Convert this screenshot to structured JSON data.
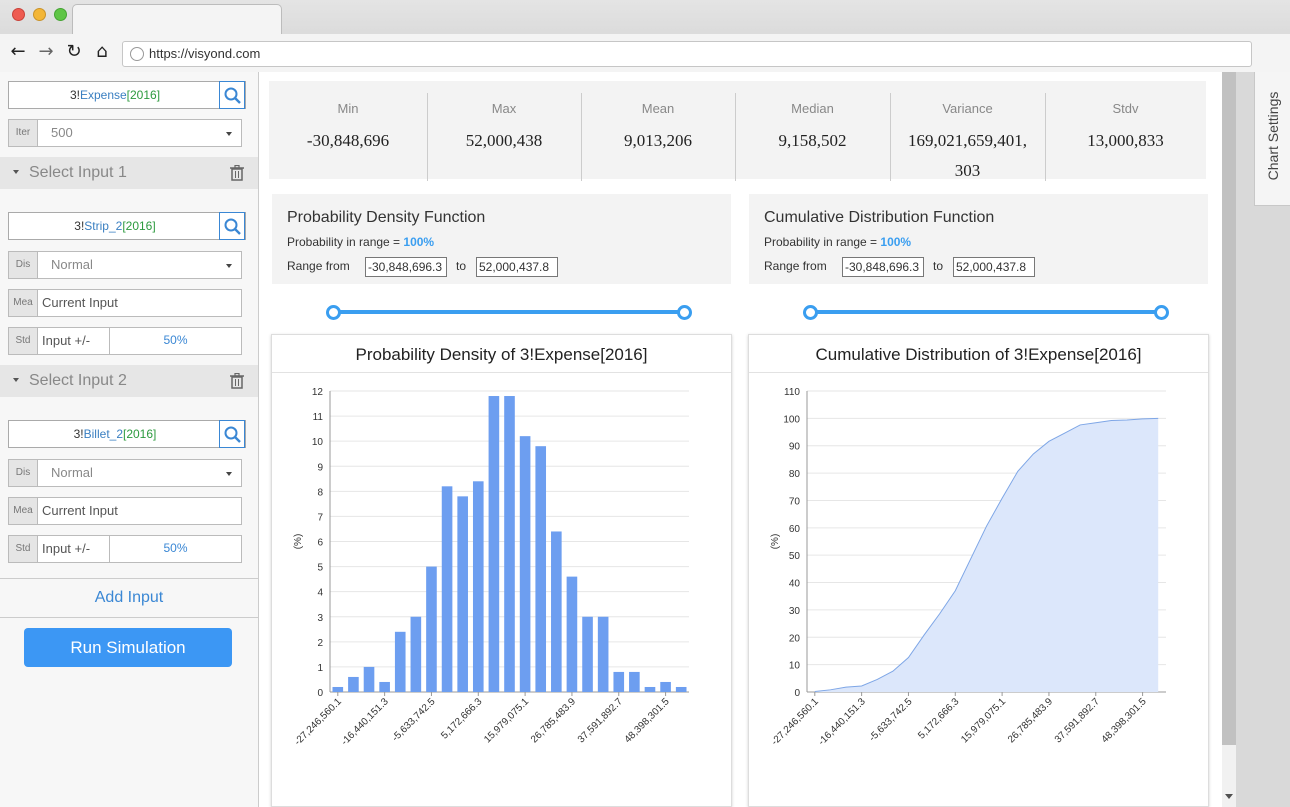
{
  "browser": {
    "url": "https://visyond.com"
  },
  "sidebar": {
    "output": {
      "prefix": "3!",
      "ref": "Expense",
      "year": "[2016]"
    },
    "iter": {
      "tag": "Iter",
      "value": "500"
    },
    "inputs": [
      {
        "header": "Select Input 1",
        "cell": {
          "prefix": "3!",
          "ref": "Strip_2",
          "year": "[2016]"
        },
        "dist": {
          "tag": "Dis",
          "value": "Normal"
        },
        "mean": {
          "tag": "Mea",
          "value": "Current Input"
        },
        "std": {
          "tag": "Std",
          "label": "Input +/-",
          "value": "50%"
        }
      },
      {
        "header": "Select Input 2",
        "cell": {
          "prefix": "3!",
          "ref": "Billet_2",
          "year": "[2016]"
        },
        "dist": {
          "tag": "Dis",
          "value": "Normal"
        },
        "mean": {
          "tag": "Mea",
          "value": "Current Input"
        },
        "std": {
          "tag": "Std",
          "label": "Input +/-",
          "value": "50%"
        }
      }
    ],
    "add_input": "Add Input",
    "run": "Run Simulation"
  },
  "stats": [
    {
      "label": "Min",
      "value": "-30,848,696"
    },
    {
      "label": "Max",
      "value": "52,000,438"
    },
    {
      "label": "Mean",
      "value": "9,013,206"
    },
    {
      "label": "Median",
      "value": "9,158,502"
    },
    {
      "label": "Variance",
      "value": "169,021,659,401,",
      "value2": "303"
    },
    {
      "label": "Stdv",
      "value": "13,000,833"
    }
  ],
  "pdf_panel": {
    "title": "Probability Density Function",
    "prob_label": "Probability in range = ",
    "prob_value": "100%",
    "range_from_label": "Range from",
    "from_value": "-30,848,696.3",
    "to_label": "to",
    "to_value": "52,000,437.8"
  },
  "cdf_panel": {
    "title": "Cumulative Distribution Function",
    "prob_label": "Probability in range = ",
    "prob_value": "100%",
    "range_from_label": "Range from",
    "from_value": "-30,848,696.3",
    "to_label": "to",
    "to_value": "52,000,437.8"
  },
  "right_panel": {
    "label": "Chart Settings"
  },
  "colors": {
    "accent": "#3a9ef0",
    "bar": "#6d9ef0",
    "area": "#dce7fb",
    "line": "#7ea6e6"
  },
  "chart_data": [
    {
      "type": "bar",
      "title": "Probability Density of 3!Expense[2016]",
      "ylabel": "(%)",
      "ylim": [
        0,
        12
      ],
      "yticks": [
        0,
        1,
        2,
        3,
        4,
        5,
        6,
        7,
        8,
        9,
        10,
        11,
        12
      ],
      "xtick_labels": [
        "-27,246,560.1",
        "-16,440,151.3",
        "-5,633,742.5",
        "5,172,666.3",
        "15,979,075.1",
        "26,785,483.9",
        "37,591,892.7",
        "48,398,301.5"
      ],
      "values": [
        0.2,
        0.6,
        1.0,
        0.4,
        2.4,
        3.0,
        5.0,
        8.2,
        7.8,
        8.4,
        11.8,
        11.8,
        10.2,
        9.8,
        6.4,
        4.6,
        3.0,
        3.0,
        0.8,
        0.8,
        0.2,
        0.4,
        0.2
      ]
    },
    {
      "type": "area",
      "title": "Cumulative Distribution of 3!Expense[2016]",
      "ylabel": "(%)",
      "ylim": [
        0,
        110
      ],
      "yticks": [
        0,
        10,
        20,
        30,
        40,
        50,
        60,
        70,
        80,
        90,
        100,
        110
      ],
      "xtick_labels": [
        "-27,246,560.1",
        "-16,440,151.3",
        "-5,633,742.5",
        "5,172,666.3",
        "15,979,075.1",
        "26,785,483.9",
        "37,591,892.7",
        "48,398,301.5"
      ],
      "values": [
        0.2,
        0.8,
        1.8,
        2.2,
        4.6,
        7.6,
        12.6,
        20.8,
        28.6,
        37.0,
        48.8,
        60.6,
        70.8,
        80.6,
        87.0,
        91.6,
        94.6,
        97.6,
        98.4,
        99.2,
        99.4,
        99.8,
        100
      ]
    }
  ]
}
